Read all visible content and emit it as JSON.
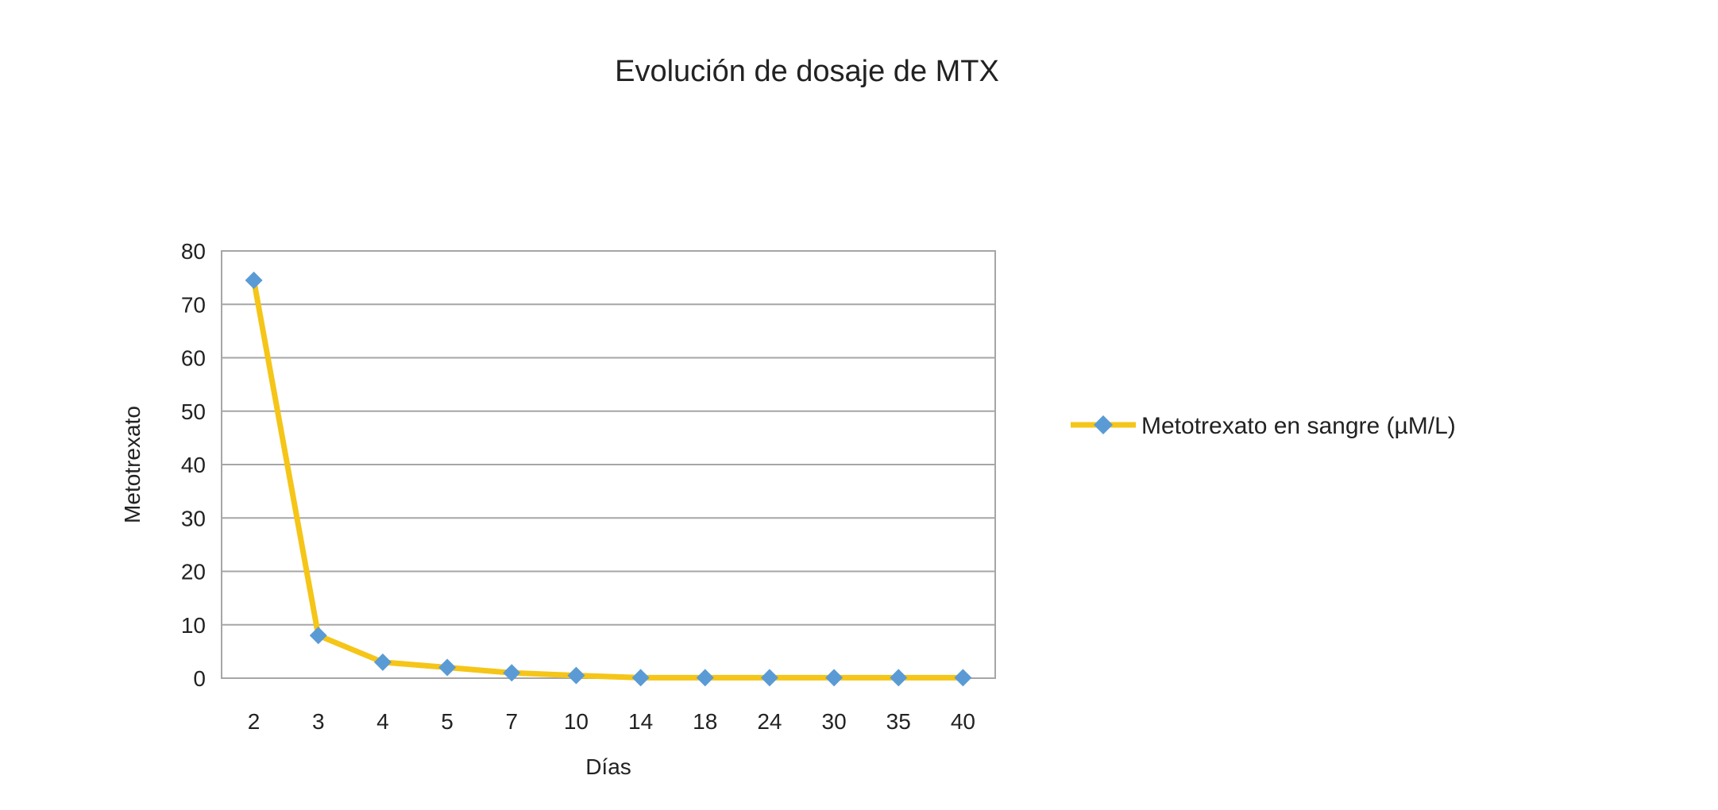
{
  "chart_data": {
    "type": "line",
    "title": "Evolución de dosaje de MTX",
    "xlabel": "Días",
    "ylabel": "Metotrexato",
    "categories": [
      "2",
      "3",
      "4",
      "5",
      "7",
      "10",
      "14",
      "18",
      "24",
      "30",
      "35",
      "40"
    ],
    "series": [
      {
        "name": "Metotrexato en sangre (µM/L)",
        "values": [
          74.5,
          8,
          3,
          2,
          1,
          0.5,
          0.1,
          0.1,
          0.1,
          0.1,
          0.1,
          0.1
        ],
        "line_color": "#F5C518",
        "marker_color": "#5B9BD5",
        "marker": "diamond"
      }
    ],
    "ylim": [
      0,
      80
    ],
    "yticks": [
      0,
      10,
      20,
      30,
      40,
      50,
      60,
      70,
      80
    ],
    "grid": true,
    "legend_position": "right"
  }
}
